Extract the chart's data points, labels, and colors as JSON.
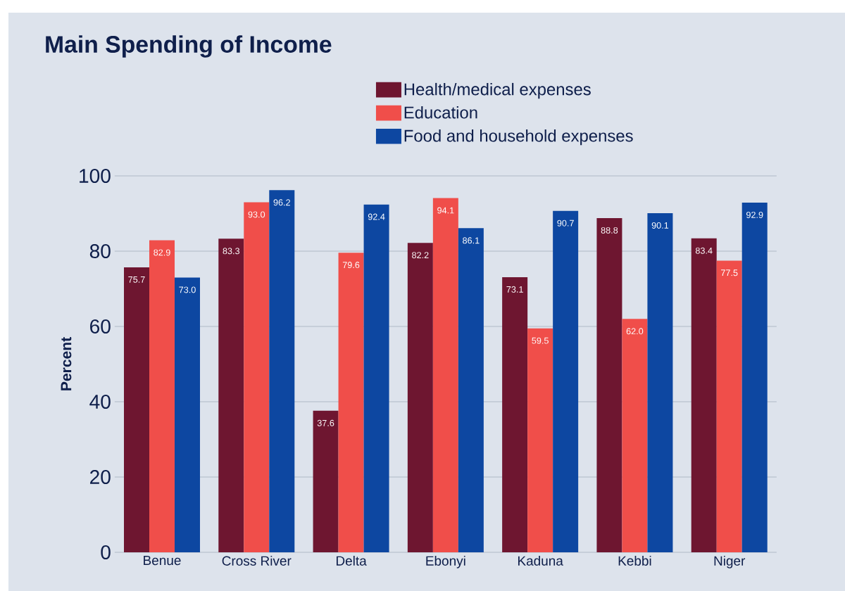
{
  "chart_data": {
    "type": "bar",
    "title": "Main Spending of Income",
    "ylabel": "Percent",
    "categories": [
      "Benue",
      "Cross River",
      "Delta",
      "Ebonyi",
      "Kaduna",
      "Kebbi",
      "Niger"
    ],
    "series": [
      {
        "name": "Health/medical expenses",
        "color": "#6e1630",
        "values": [
          75.7,
          83.3,
          37.6,
          82.2,
          73.1,
          88.8,
          83.4
        ],
        "value_labels": [
          "75.7",
          "83.3",
          "37.6",
          "82.2",
          "73.1",
          "88.8",
          "83.4"
        ]
      },
      {
        "name": "Education",
        "color": "#f04e4a",
        "values": [
          82.9,
          93.0,
          79.6,
          94.1,
          59.5,
          62.0,
          77.5
        ],
        "value_labels": [
          "82.9",
          "93.0",
          "79.6",
          "94.1",
          "59.5",
          "62.0",
          "77.5"
        ]
      },
      {
        "name": "Food and household expenses",
        "color": "#0d47a1",
        "values": [
          73.0,
          96.2,
          92.4,
          86.1,
          90.7,
          90.1,
          92.9
        ],
        "value_labels": [
          "73.0",
          "96.2",
          "92.4",
          "86.1",
          "90.7",
          "90.1",
          "92.9"
        ]
      }
    ],
    "ylim": [
      0,
      100
    ],
    "yticks": [
      0,
      20,
      40,
      60,
      80,
      100
    ],
    "grid": "y",
    "legend": "top right"
  }
}
